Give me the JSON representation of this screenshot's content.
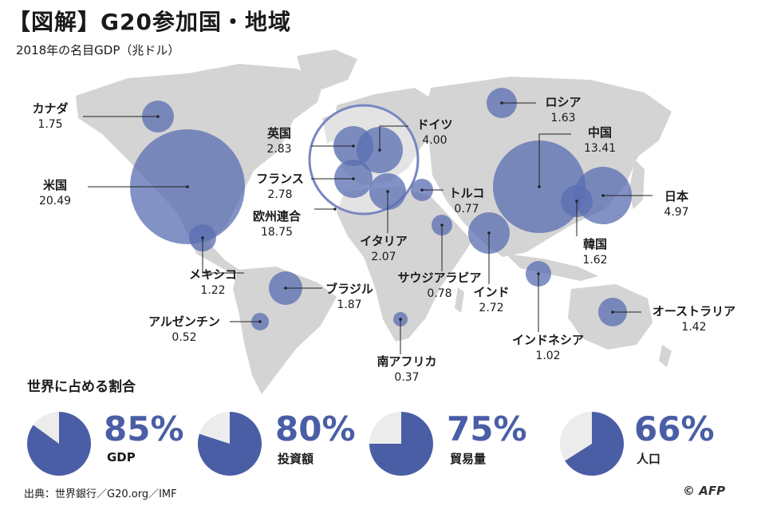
{
  "header": {
    "title": "【図解】G20参加国・地域",
    "subtitle": "2018年の名目GDP（兆ドル）"
  },
  "colors": {
    "bubble": "#5a6db2",
    "land": "#d4d4d4",
    "ring": "#7a86c0",
    "pie_bg": "#ececec",
    "pie_fill": "#4a5ea6"
  },
  "countries": [
    {
      "name": "カナダ",
      "value": "1.75"
    },
    {
      "name": "米国",
      "value": "20.49"
    },
    {
      "name": "メキシコ",
      "value": "1.22"
    },
    {
      "name": "ブラジル",
      "value": "1.87"
    },
    {
      "name": "アルゼンチン",
      "value": "0.52"
    },
    {
      "name": "英国",
      "value": "2.83"
    },
    {
      "name": "ドイツ",
      "value": "4.00"
    },
    {
      "name": "フランス",
      "value": "2.78"
    },
    {
      "name": "欧州連合",
      "value": "18.75"
    },
    {
      "name": "イタリア",
      "value": "2.07"
    },
    {
      "name": "トルコ",
      "value": "0.77"
    },
    {
      "name": "サウジアラビア",
      "value": "0.78"
    },
    {
      "name": "南アフリカ",
      "value": "0.37"
    },
    {
      "name": "ロシア",
      "value": "1.63"
    },
    {
      "name": "中国",
      "value": "13.41"
    },
    {
      "name": "日本",
      "value": "4.97"
    },
    {
      "name": "韓国",
      "value": "1.62"
    },
    {
      "name": "インド",
      "value": "2.72"
    },
    {
      "name": "インドネシア",
      "value": "1.02"
    },
    {
      "name": "オーストラリア",
      "value": "1.42"
    }
  ],
  "share": {
    "title": "世界に占める割合",
    "items": [
      {
        "label": "GDP",
        "percent": "85%",
        "fraction": 0.85
      },
      {
        "label": "投資額",
        "percent": "80%",
        "fraction": 0.8
      },
      {
        "label": "貿易量",
        "percent": "75%",
        "fraction": 0.75
      },
      {
        "label": "人口",
        "percent": "66%",
        "fraction": 0.66
      }
    ]
  },
  "footer": {
    "source": "出典：世界銀行／G20.org／IMF",
    "credit": "© AFP"
  }
}
